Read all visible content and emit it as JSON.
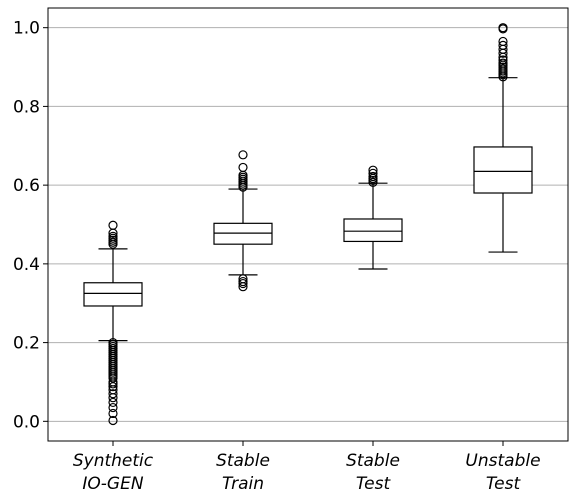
{
  "chart_data": {
    "type": "box",
    "title": "",
    "xlabel": "",
    "ylabel": "",
    "ylim": [
      -0.05,
      1.05
    ],
    "yticks": [
      0.0,
      0.2,
      0.4,
      0.6,
      0.8,
      1.0
    ],
    "ytick_labels": [
      "0.0",
      "0.2",
      "0.4",
      "0.6",
      "0.8",
      "1.0"
    ],
    "grid": "horizontal",
    "categories": [
      {
        "label_lines": [
          "Synthetic",
          "IO-GEN"
        ]
      },
      {
        "label_lines": [
          "Stable",
          "Train"
        ]
      },
      {
        "label_lines": [
          "Stable",
          "Test"
        ]
      },
      {
        "label_lines": [
          "Unstable",
          "Test"
        ]
      }
    ],
    "boxes": [
      {
        "whisker_low": 0.205,
        "q1": 0.293,
        "median": 0.325,
        "q3": 0.352,
        "whisker_high": 0.438,
        "outliers": [
          0.45,
          0.455,
          0.46,
          0.465,
          0.47,
          0.478,
          0.498,
          0.2,
          0.195,
          0.19,
          0.185,
          0.18,
          0.175,
          0.17,
          0.165,
          0.16,
          0.155,
          0.15,
          0.145,
          0.14,
          0.135,
          0.13,
          0.125,
          0.12,
          0.115,
          0.11,
          0.1,
          0.095,
          0.088,
          0.08,
          0.07,
          0.06,
          0.048,
          0.035,
          0.02,
          0.002
        ]
      },
      {
        "whisker_low": 0.372,
        "q1": 0.45,
        "median": 0.478,
        "q3": 0.503,
        "whisker_high": 0.59,
        "outliers": [
          0.595,
          0.6,
          0.605,
          0.61,
          0.615,
          0.62,
          0.625,
          0.645,
          0.677,
          0.362,
          0.355,
          0.35,
          0.342
        ]
      },
      {
        "whisker_low": 0.387,
        "q1": 0.457,
        "median": 0.483,
        "q3": 0.514,
        "whisker_high": 0.605,
        "outliers": [
          0.607,
          0.612,
          0.617,
          0.622,
          0.63,
          0.638
        ]
      },
      {
        "whisker_low": 0.43,
        "q1": 0.58,
        "median": 0.635,
        "q3": 0.697,
        "whisker_high": 0.873,
        "outliers": [
          0.875,
          0.88,
          0.885,
          0.89,
          0.895,
          0.9,
          0.905,
          0.91,
          0.918,
          0.925,
          0.935,
          0.945,
          0.955,
          0.965,
          0.997,
          1.0
        ]
      }
    ]
  }
}
